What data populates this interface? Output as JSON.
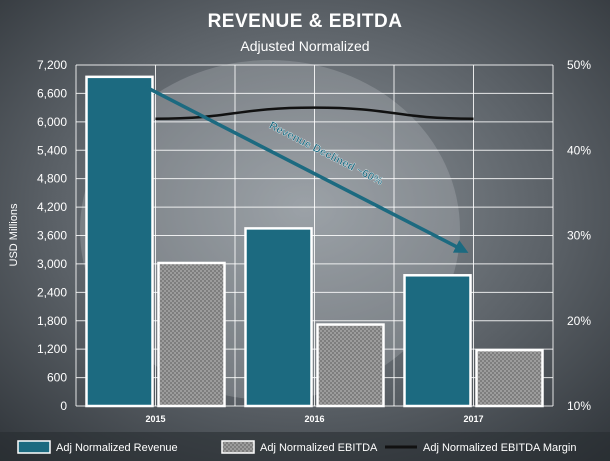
{
  "chart_data": {
    "type": "bar",
    "title": "REVENUE & EBITDA",
    "subtitle": "Adjusted Normalized",
    "ylabel": "USD Millions",
    "xlabel": "",
    "categories": [
      "2015",
      "2016",
      "2017"
    ],
    "ylim": [
      0,
      7200
    ],
    "y_ticks": [
      "0",
      "600",
      "1,200",
      "1,800",
      "2,400",
      "3,000",
      "3,600",
      "4,200",
      "4,800",
      "5,400",
      "6,000",
      "6,600",
      "7,200"
    ],
    "y2lim": [
      10,
      50
    ],
    "y2_ticks": [
      "10%",
      "20%",
      "30%",
      "40%",
      "50%"
    ],
    "series": [
      {
        "name": "Adj Normalized Revenue",
        "type": "bar",
        "color": "#1c6a80",
        "values": [
          6950,
          3750,
          2760
        ]
      },
      {
        "name": "Adj Normalized EBITDA",
        "type": "bar",
        "color": "#8f8f8f",
        "values": [
          3020,
          1720,
          1180
        ]
      },
      {
        "name": "Adj Normalized EBITDA Margin",
        "type": "line",
        "axis": "right",
        "color": "#111111",
        "values": [
          43.7,
          45.0,
          43.7
        ]
      }
    ],
    "annotations": [
      {
        "text": "Revenue Declined ~60%",
        "from_category": "2015",
        "to_category": "2017",
        "color": "#1c6a80"
      }
    ],
    "grid": true,
    "legend": "bottom"
  }
}
